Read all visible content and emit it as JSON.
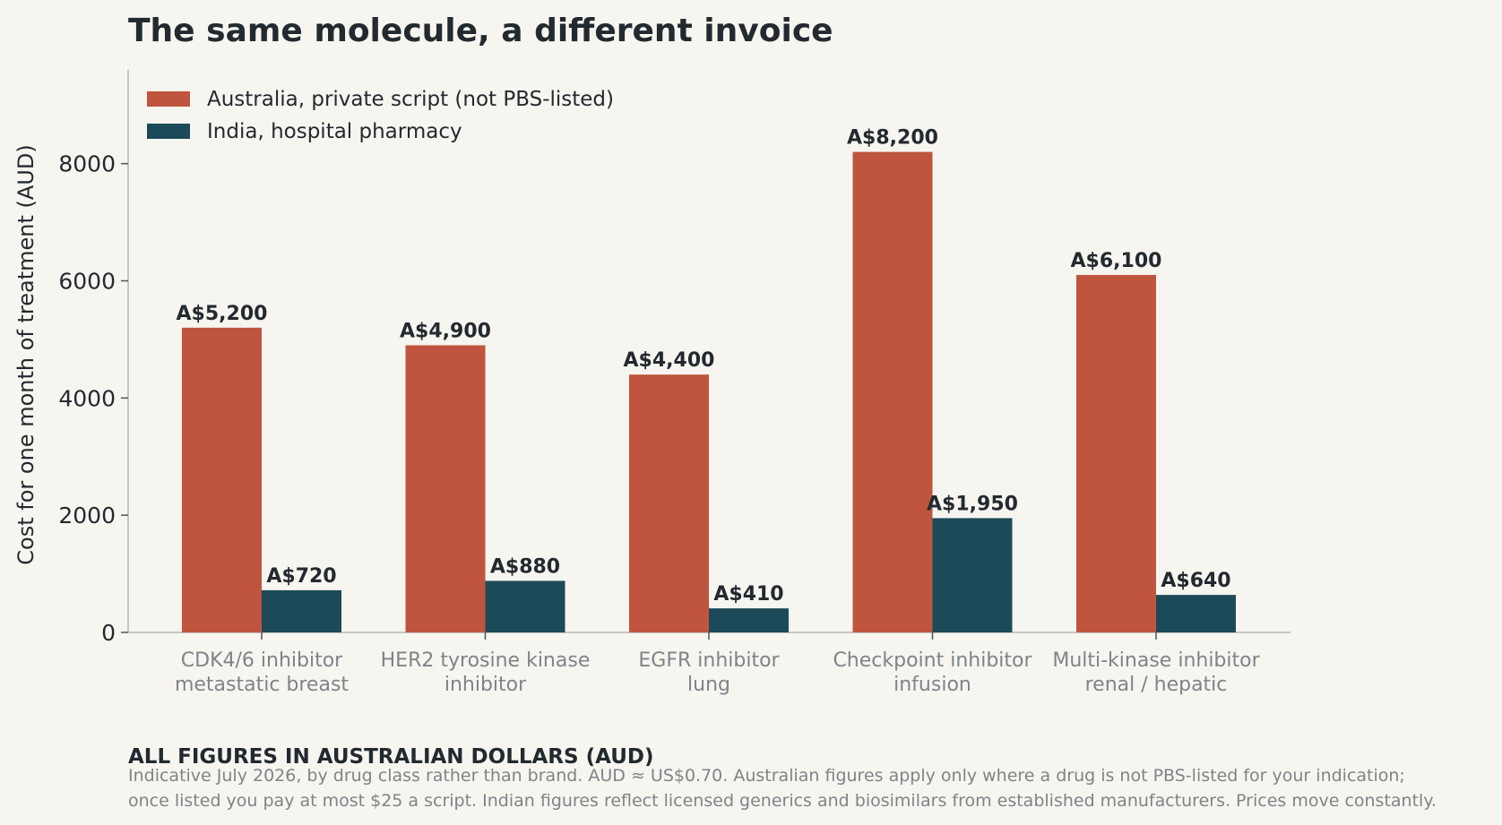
{
  "chart_data": {
    "type": "bar",
    "title": "The same molecule, a different invoice",
    "ylabel": "Cost for one month of treatment (AUD)",
    "xlabel": "",
    "ylim": [
      0,
      9600
    ],
    "yticks": [
      0,
      2000,
      4000,
      6000,
      8000
    ],
    "categories": [
      [
        "CDK4/6 inhibitor",
        "metastatic breast"
      ],
      [
        "HER2 tyrosine kinase",
        "inhibitor"
      ],
      [
        "EGFR inhibitor",
        "lung"
      ],
      [
        "Checkpoint inhibitor",
        "infusion"
      ],
      [
        "Multi-kinase inhibitor",
        "renal / hepatic"
      ]
    ],
    "series": [
      {
        "name": "Australia, private script (not PBS-listed)",
        "color": "#bf553e",
        "values": [
          5200,
          4900,
          4400,
          8200,
          6100
        ],
        "labels": [
          "A$5,200",
          "A$4,900",
          "A$4,400",
          "A$8,200",
          "A$6,100"
        ]
      },
      {
        "name": "India, hospital pharmacy",
        "color": "#1c4a58",
        "values": [
          720,
          880,
          410,
          1950,
          640
        ],
        "labels": [
          "A$720",
          "A$880",
          "A$410",
          "A$1,950",
          "A$640"
        ]
      }
    ],
    "legend_position": "top-left",
    "grid": false
  },
  "notes": {
    "heading": "ALL FIGURES IN AUSTRALIAN DOLLARS (AUD)",
    "line1": "Indicative July 2026, by drug class rather than brand. AUD ≈ US$0.70. Australian figures apply only where a drug is not PBS-listed for your indication;",
    "line2": "once listed you pay at most $25 a script. Indian figures reflect licensed generics and biosimilars from established manufacturers. Prices move constantly."
  },
  "colors": {
    "background": "#f7f5ef",
    "text": "#222a30",
    "muted": "#7d848a",
    "axis": "#b5b5b0"
  }
}
